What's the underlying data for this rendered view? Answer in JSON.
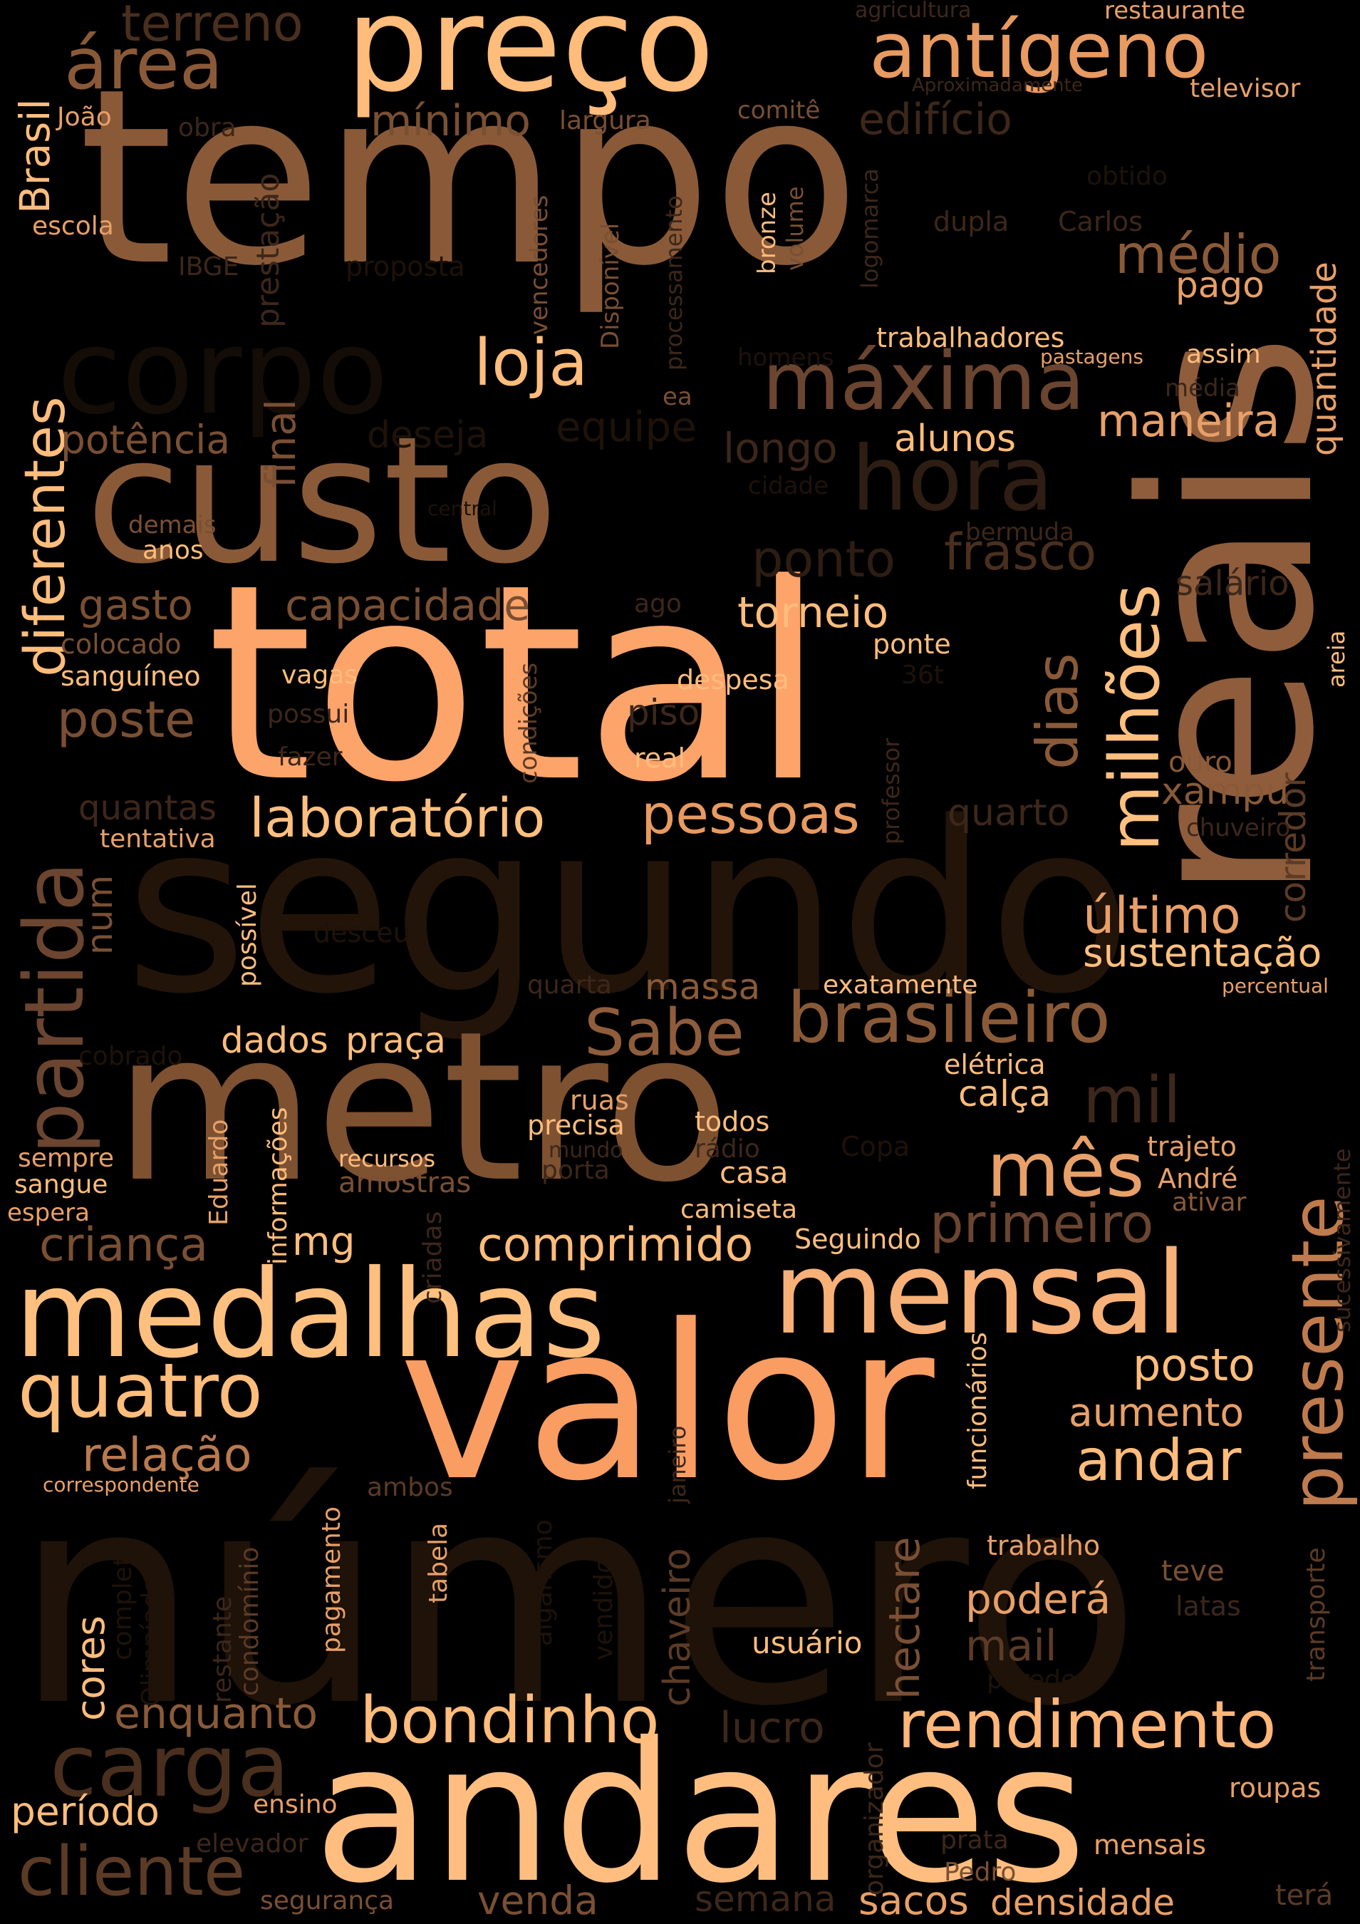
{
  "words": [
    {
      "text": "número",
      "c": "#1e1209"
    },
    {
      "text": "segundo",
      "c": "#231409"
    },
    {
      "text": "tempo",
      "c": "#8a5a38"
    },
    {
      "text": "reais",
      "c": "#8f5d3b"
    },
    {
      "text": "total",
      "c": "#fda46a"
    },
    {
      "text": "custo",
      "c": "#8a5a38"
    },
    {
      "text": "metro",
      "c": "#7e5131"
    },
    {
      "text": "valor",
      "c": "#fa9d62"
    },
    {
      "text": "andares",
      "c": "#ffbe80"
    },
    {
      "text": "medalhas",
      "c": "#ffc07f"
    },
    {
      "text": "mensal",
      "c": "#f7b077"
    },
    {
      "text": "preço",
      "c": "#ffbc7a"
    },
    {
      "text": "antígeno",
      "c": "#e89a60"
    },
    {
      "text": "corpo",
      "c": "#140c07"
    },
    {
      "text": "máxima",
      "c": "#6b4530"
    },
    {
      "text": "hora",
      "c": "#2e1d12"
    },
    {
      "text": "brasileiro",
      "c": "#8a5a38"
    },
    {
      "text": "partida",
      "c": "#6b4530"
    },
    {
      "text": "presente",
      "c": "#c07b4d"
    },
    {
      "text": "milhões",
      "c": "#ffc07f"
    },
    {
      "text": "quatro",
      "c": "#ffbd7c"
    },
    {
      "text": "carga",
      "c": "#4a2f1e"
    },
    {
      "text": "bondinho",
      "c": "#ffbc7b"
    },
    {
      "text": "rendimento",
      "c": "#ffb679"
    },
    {
      "text": "cliente",
      "c": "#5c3b26"
    },
    {
      "text": "área",
      "c": "#8a5a38"
    },
    {
      "text": "terreno",
      "c": "#4a2f1e"
    },
    {
      "text": "diferentes",
      "c": "#ffbd7c"
    },
    {
      "text": "laboratório",
      "c": "#ffc07f"
    },
    {
      "text": "pessoas",
      "c": "#e89a60"
    },
    {
      "text": "Sabe",
      "c": "#8f5d3b"
    },
    {
      "text": "mês",
      "c": "#e8a068"
    },
    {
      "text": "primeiro",
      "c": "#6b4530"
    },
    {
      "text": "mil",
      "c": "#3d271a"
    },
    {
      "text": "andar",
      "c": "#ffbc7b"
    },
    {
      "text": "dias",
      "c": "#8a5a38"
    },
    {
      "text": "loja",
      "c": "#ffbd7c"
    },
    {
      "text": "comprimido",
      "c": "#ffbc7b"
    },
    {
      "text": "capacidade",
      "c": "#7a4f33"
    },
    {
      "text": "ponto",
      "c": "#2e1d12"
    },
    {
      "text": "frasco",
      "c": "#4a2f1e"
    },
    {
      "text": "torneio",
      "c": "#ffbd7c"
    },
    {
      "text": "médio",
      "c": "#8a5a38"
    },
    {
      "text": "mínimo",
      "c": "#7a4f33"
    },
    {
      "text": "edifício",
      "c": "#3d271a"
    },
    {
      "text": "maneira",
      "c": "#e8a068"
    },
    {
      "text": "último",
      "c": "#e8a068"
    },
    {
      "text": "sustentação",
      "c": "#ffc07f"
    },
    {
      "text": "relação",
      "c": "#b97a4e"
    },
    {
      "text": "enquanto",
      "c": "#8a5a38"
    },
    {
      "text": "período",
      "c": "#ffbd7c"
    },
    {
      "text": "criança",
      "c": "#7a4f33"
    },
    {
      "text": "poste",
      "c": "#7a4f33"
    },
    {
      "text": "gasto",
      "c": "#7a4f33"
    },
    {
      "text": "potência",
      "c": "#7a4f33"
    },
    {
      "text": "final",
      "c": "#7a4f33"
    },
    {
      "text": "Brasil",
      "c": "#ffbd7c"
    },
    {
      "text": "posto",
      "c": "#ffbd7c"
    },
    {
      "text": "aumento",
      "c": "#e8a068"
    },
    {
      "text": "poderá",
      "c": "#e8a068"
    },
    {
      "text": "mail",
      "c": "#5c3b26"
    },
    {
      "text": "lucro",
      "c": "#3d271a"
    },
    {
      "text": "hectare",
      "c": "#7a4f33"
    },
    {
      "text": "chaveiro",
      "c": "#5c3b26"
    },
    {
      "text": "venda",
      "c": "#7a4f33"
    },
    {
      "text": "sacos",
      "c": "#e8a068"
    },
    {
      "text": "densidade",
      "c": "#e8a068"
    },
    {
      "text": "semana",
      "c": "#3d271a"
    },
    {
      "text": "corredor",
      "c": "#5c3b26"
    },
    {
      "text": "quantidade",
      "c": "#e8a068"
    },
    {
      "text": "cores",
      "c": "#ffbd7c"
    },
    {
      "text": "alunos",
      "c": "#ffbd7c"
    },
    {
      "text": "deseja",
      "c": "#1e1209"
    },
    {
      "text": "equipe",
      "c": "#1e1209"
    },
    {
      "text": "longo",
      "c": "#3d271a"
    },
    {
      "text": "xampu",
      "c": "#8a5a38"
    },
    {
      "text": "quarto",
      "c": "#3d271a"
    },
    {
      "text": "quantas",
      "c": "#3d271a"
    },
    {
      "text": "num",
      "c": "#7a4f33"
    },
    {
      "text": "dados",
      "c": "#ffbd7c"
    },
    {
      "text": "praça",
      "c": "#ffbd7c"
    },
    {
      "text": "massa",
      "c": "#8a5a38"
    },
    {
      "text": "calça",
      "c": "#ffbd7c"
    },
    {
      "text": "piso",
      "c": "#3d271a"
    },
    {
      "text": "salário",
      "c": "#3d271a"
    },
    {
      "text": "amostras",
      "c": "#7a4f33"
    },
    {
      "text": "casa",
      "c": "#ffbd7c"
    },
    {
      "text": "usuário",
      "c": "#ffbd7c"
    },
    {
      "text": "mg",
      "c": "#ffbd7c"
    },
    {
      "text": "ouro",
      "c": "#8a5a38"
    },
    {
      "text": "trajeto",
      "c": "#e8a068"
    },
    {
      "text": "André",
      "c": "#e8a068"
    },
    {
      "text": "ativar",
      "c": "#8a5a38"
    },
    {
      "text": "teve",
      "c": "#7a4f33"
    },
    {
      "text": "latas",
      "c": "#3d271a"
    },
    {
      "text": "roupas",
      "c": "#e8a068"
    },
    {
      "text": "mensais",
      "c": "#e8a068"
    },
    {
      "text": "prata",
      "c": "#3d271a"
    },
    {
      "text": "Pedro",
      "c": "#7a4f33"
    },
    {
      "text": "terá",
      "c": "#5c3b26"
    },
    {
      "text": "paredes",
      "c": "#1e1209"
    },
    {
      "text": "trabalho",
      "c": "#e8a068"
    },
    {
      "text": "ensino",
      "c": "#e8a068"
    },
    {
      "text": "elevador",
      "c": "#3d271a"
    },
    {
      "text": "segurança",
      "c": "#7a4f33"
    },
    {
      "text": "ambos",
      "c": "#5c3b26"
    },
    {
      "text": "tabela",
      "c": "#e8a068"
    },
    {
      "text": "pagamento",
      "c": "#e8a068"
    },
    {
      "text": "condomínio",
      "c": "#5c3b26"
    },
    {
      "text": "restante",
      "c": "#3d271a"
    },
    {
      "text": "Olimpíada",
      "c": "#1e1209"
    },
    {
      "text": "completo",
      "c": "#1e1209"
    },
    {
      "text": "correspondente",
      "c": "#e8a068"
    },
    {
      "text": "vendidos",
      "c": "#1e1209"
    },
    {
      "text": "algarismo",
      "c": "#1e1209"
    },
    {
      "text": "janeiro",
      "c": "#3d271a"
    },
    {
      "text": "funcionários",
      "c": "#ffbd7c"
    },
    {
      "text": "organizador",
      "c": "#3d271a"
    },
    {
      "text": "transporte",
      "c": "#5c3b26"
    },
    {
      "text": "sucessivamente",
      "c": "#3d271a"
    },
    {
      "text": "criadas",
      "c": "#3d271a"
    },
    {
      "text": "informações",
      "c": "#ffbd7c"
    },
    {
      "text": "Eduardo",
      "c": "#e8a068"
    },
    {
      "text": "possível",
      "c": "#ffbd7c"
    },
    {
      "text": "desceu",
      "c": "#1e1209"
    },
    {
      "text": "quarta",
      "c": "#3d271a"
    },
    {
      "text": "exatamente",
      "c": "#ffbd7c"
    },
    {
      "text": "percentual",
      "c": "#e8a068"
    },
    {
      "text": "elétrica",
      "c": "#ffbd7c"
    },
    {
      "text": "cobrado",
      "c": "#1e1209"
    },
    {
      "text": "ruas",
      "c": "#e8a068"
    },
    {
      "text": "precisa",
      "c": "#ffbd7c"
    },
    {
      "text": "todos",
      "c": "#ffbd7c"
    },
    {
      "text": "mundo",
      "c": "#3d271a"
    },
    {
      "text": "rádio",
      "c": "#3d271a"
    },
    {
      "text": "Copa",
      "c": "#1e1209"
    },
    {
      "text": "recursos",
      "c": "#ffbd7c"
    },
    {
      "text": "porta",
      "c": "#3d271a"
    },
    {
      "text": "camiseta",
      "c": "#ffbd7c"
    },
    {
      "text": "Seguindo",
      "c": "#ffbd7c"
    },
    {
      "text": "sempre",
      "c": "#e8a068"
    },
    {
      "text": "sangue",
      "c": "#ffbd7c"
    },
    {
      "text": "espera",
      "c": "#e8a068"
    },
    {
      "text": "tentativa",
      "c": "#e8a068"
    },
    {
      "text": "professor",
      "c": "#3d271a"
    },
    {
      "text": "chuveiro",
      "c": "#3d271a"
    },
    {
      "text": "fazer",
      "c": "#3d271a"
    },
    {
      "text": "real",
      "c": "#ffbd7c"
    },
    {
      "text": "condições",
      "c": "#5c3b26"
    },
    {
      "text": "possui",
      "c": "#3d271a"
    },
    {
      "text": "vagas",
      "c": "#ffbd7c"
    },
    {
      "text": "despesa",
      "c": "#ffbd7c"
    },
    {
      "text": "36t",
      "c": "#1e1209"
    },
    {
      "text": "ponte",
      "c": "#ffbd7c"
    },
    {
      "text": "sanguíneo",
      "c": "#ffbd7c"
    },
    {
      "text": "colocado",
      "c": "#7a4f33"
    },
    {
      "text": "ago",
      "c": "#3d271a"
    },
    {
      "text": "demais",
      "c": "#7a4f33"
    },
    {
      "text": "anos",
      "c": "#ffbd7c"
    },
    {
      "text": "central",
      "c": "#1e1209"
    },
    {
      "text": "cidade",
      "c": "#1e1209"
    },
    {
      "text": "bermuda",
      "c": "#3d271a"
    },
    {
      "text": "areia",
      "c": "#ffbd7c"
    },
    {
      "text": "ea",
      "c": "#7a4f33"
    },
    {
      "text": "homens",
      "c": "#1e1209"
    },
    {
      "text": "pastagens",
      "c": "#e8a068"
    },
    {
      "text": "assim",
      "c": "#ffbd7c"
    },
    {
      "text": "média",
      "c": "#3d271a"
    },
    {
      "text": "trabalhadores",
      "c": "#ffbd7c"
    },
    {
      "text": "pago",
      "c": "#e8a068"
    },
    {
      "text": "dupla",
      "c": "#3d271a"
    },
    {
      "text": "Carlos",
      "c": "#3d271a"
    },
    {
      "text": "obtido",
      "c": "#1e1209"
    },
    {
      "text": "logomarca",
      "c": "#3d271a"
    },
    {
      "text": "volume",
      "c": "#7a4f33"
    },
    {
      "text": "bronze",
      "c": "#ffbd7c"
    },
    {
      "text": "processamento",
      "c": "#3d271a"
    },
    {
      "text": "Disponível",
      "c": "#7a4f33"
    },
    {
      "text": "vencedores",
      "c": "#7a4f33"
    },
    {
      "text": "comitê",
      "c": "#7a4f33"
    },
    {
      "text": "largura",
      "c": "#7a4f33"
    },
    {
      "text": "obra",
      "c": "#3d271a"
    },
    {
      "text": "prestação",
      "c": "#3d271a"
    },
    {
      "text": "proposta",
      "c": "#1e1209"
    },
    {
      "text": "IBGE",
      "c": "#3d271a"
    },
    {
      "text": "escola",
      "c": "#e8a068"
    },
    {
      "text": "João",
      "c": "#e8a068"
    },
    {
      "text": "agricultura",
      "c": "#3d271a"
    },
    {
      "text": "restaurante",
      "c": "#e8a068"
    },
    {
      "text": "Aproximadamente",
      "c": "#3d271a"
    },
    {
      "text": "televisor",
      "c": "#e8a068"
    }
  ]
}
